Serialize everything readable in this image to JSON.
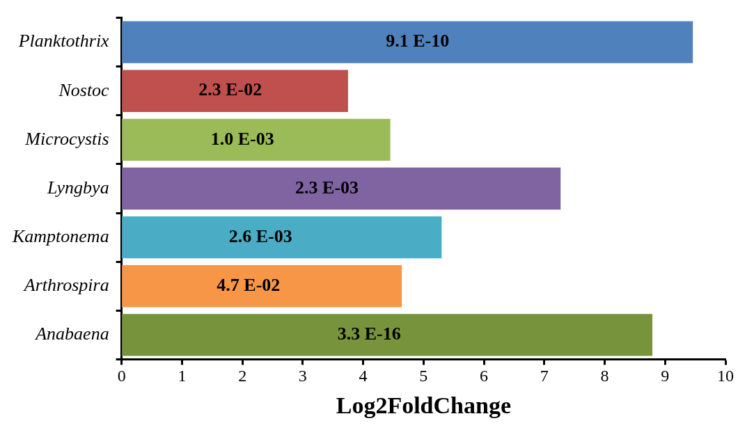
{
  "chart_data": {
    "type": "bar",
    "orientation": "horizontal",
    "xlabel": "Log2FoldChange",
    "categories": [
      "Planktothrix",
      "Nostoc",
      "Microcystis",
      "Lyngbya",
      "Kamptonema",
      "Arthrospira",
      "Anabaena"
    ],
    "values": [
      9.46,
      3.75,
      4.45,
      7.27,
      5.3,
      4.64,
      8.79
    ],
    "colors": [
      "#4f81bd",
      "#c0504d",
      "#9bbb59",
      "#8064a2",
      "#4bacc6",
      "#f79646",
      "#77933c"
    ],
    "xlim": [
      0,
      10
    ],
    "xticks": [
      0,
      1,
      2,
      3,
      4,
      5,
      6,
      7,
      8,
      9,
      10
    ],
    "grid": false,
    "legend": false,
    "annotations": [
      {
        "text": "9.1 E-10",
        "x": 4.9,
        "y": "Planktothrix"
      },
      {
        "text": "2.3 E-02",
        "x": 1.8,
        "y": "Nostoc"
      },
      {
        "text": "1.0 E-03",
        "x": 2.0,
        "y": "Microcystis"
      },
      {
        "text": "2.3 E-03",
        "x": 3.4,
        "y": "Lyngbya"
      },
      {
        "text": "2.6 E-03",
        "x": 2.3,
        "y": "Kamptonema"
      },
      {
        "text": "4.7 E-02",
        "x": 2.1,
        "y": "Arthrospira"
      },
      {
        "text": "3.3 E-16",
        "x": 4.1,
        "y": "Anabaena"
      }
    ]
  }
}
